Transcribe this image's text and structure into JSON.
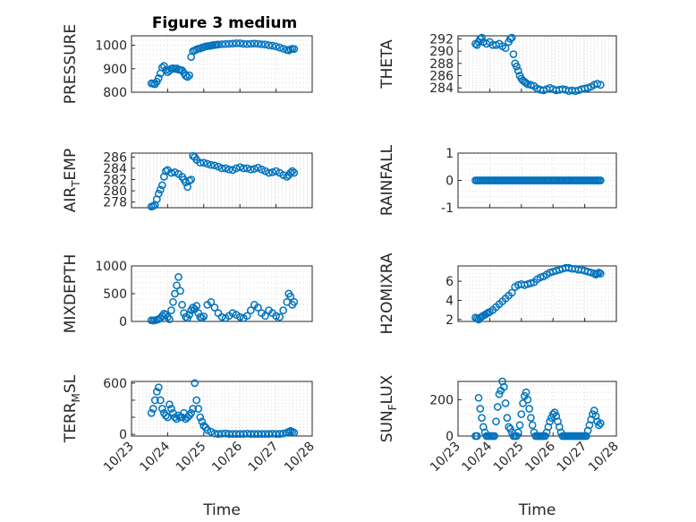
{
  "figure_title": "Figure 3 medium",
  "chart_data": [
    {
      "type": "scatter",
      "ylabel": "PRESSURE",
      "xlabel": "",
      "ylim": [
        800,
        1040
      ],
      "yticks": [
        800,
        900,
        1000
      ],
      "ytick_labels": [
        "800",
        "900",
        "1000"
      ],
      "xlim": [
        0,
        5
      ],
      "x": [
        0.55,
        0.6,
        0.65,
        0.7,
        0.75,
        0.8,
        0.85,
        0.9,
        0.95,
        1.0,
        1.05,
        1.1,
        1.15,
        1.2,
        1.25,
        1.3,
        1.35,
        1.4,
        1.45,
        1.5,
        1.55,
        1.6,
        1.65,
        1.7,
        1.75,
        1.8,
        1.85,
        1.9,
        1.95,
        2.0,
        2.05,
        2.1,
        2.15,
        2.2,
        2.25,
        2.3,
        2.35,
        2.4,
        2.5,
        2.6,
        2.7,
        2.8,
        2.9,
        3.0,
        3.1,
        3.2,
        3.3,
        3.4,
        3.5,
        3.6,
        3.7,
        3.8,
        3.9,
        4.0,
        4.1,
        4.2,
        4.3,
        4.35,
        4.4,
        4.45,
        4.5
      ],
      "y": [
        838,
        836,
        834,
        845,
        860,
        880,
        905,
        912,
        895,
        885,
        892,
        900,
        902,
        899,
        901,
        896,
        895,
        893,
        882,
        870,
        865,
        872,
        950,
        975,
        978,
        982,
        985,
        986,
        990,
        992,
        995,
        996,
        997,
        998,
        1000,
        1001,
        1002,
        1003,
        1004,
        1005,
        1006,
        1007,
        1008,
        1008,
        1006,
        1005,
        1006,
        1007,
        1006,
        1004,
        1003,
        1000,
        998,
        995,
        990,
        985,
        980,
        978,
        982,
        985,
        984
      ]
    },
    {
      "type": "scatter",
      "ylabel": "THETA",
      "xlabel": "",
      "ylim": [
        283.3,
        292.5
      ],
      "yticks": [
        284,
        286,
        288,
        290,
        292
      ],
      "ytick_labels": [
        "284",
        "286",
        "288",
        "290",
        "292"
      ],
      "xlim": [
        0,
        5
      ],
      "x": [
        0.55,
        0.6,
        0.65,
        0.7,
        0.75,
        0.8,
        0.9,
        1.0,
        1.1,
        1.2,
        1.3,
        1.4,
        1.5,
        1.6,
        1.65,
        1.7,
        1.75,
        1.8,
        1.85,
        1.9,
        1.95,
        2.0,
        2.05,
        2.1,
        2.15,
        2.2,
        2.3,
        2.4,
        2.5,
        2.6,
        2.7,
        2.8,
        2.9,
        3.0,
        3.1,
        3.2,
        3.3,
        3.4,
        3.5,
        3.6,
        3.7,
        3.8,
        3.9,
        4.0,
        4.1,
        4.2,
        4.3,
        4.4,
        4.5
      ],
      "y": [
        291.2,
        291.0,
        291.5,
        292.0,
        292.2,
        291.5,
        291.2,
        291.5,
        291.0,
        291.0,
        291.2,
        290.8,
        290.5,
        291.5,
        292.0,
        292.2,
        289.5,
        288.0,
        287.5,
        286.8,
        286.0,
        285.5,
        285.2,
        285.0,
        284.8,
        284.6,
        284.5,
        284.3,
        283.9,
        283.7,
        283.6,
        283.8,
        284.0,
        283.8,
        283.6,
        283.7,
        283.8,
        283.7,
        283.5,
        283.6,
        283.5,
        283.6,
        283.8,
        283.9,
        284.0,
        284.2,
        284.5,
        284.7,
        284.5
      ]
    },
    {
      "type": "scatter",
      "ylabel": "AIR_TEMP",
      "xlabel": "",
      "ylim": [
        277,
        286.7
      ],
      "yticks": [
        278,
        280,
        282,
        284,
        286
      ],
      "ytick_labels": [
        "278",
        "280",
        "282",
        "284",
        "286"
      ],
      "xlim": [
        0,
        5
      ],
      "x": [
        0.55,
        0.6,
        0.65,
        0.7,
        0.75,
        0.8,
        0.85,
        0.9,
        0.95,
        1.0,
        1.1,
        1.2,
        1.3,
        1.4,
        1.45,
        1.5,
        1.55,
        1.6,
        1.65,
        1.7,
        1.75,
        1.8,
        1.9,
        2.0,
        2.1,
        2.2,
        2.3,
        2.4,
        2.5,
        2.6,
        2.7,
        2.8,
        2.9,
        3.0,
        3.1,
        3.2,
        3.3,
        3.4,
        3.5,
        3.6,
        3.7,
        3.8,
        3.9,
        4.0,
        4.1,
        4.2,
        4.3,
        4.35,
        4.4,
        4.45,
        4.5
      ],
      "y": [
        277.2,
        277.3,
        277.5,
        278.5,
        279.5,
        280.2,
        281.0,
        282.5,
        283.5,
        283.7,
        283.2,
        283.3,
        283.0,
        282.5,
        282.0,
        281.5,
        280.7,
        281.8,
        282.0,
        286.2,
        286.0,
        285.5,
        285.0,
        285.0,
        284.8,
        284.6,
        284.5,
        284.3,
        284.0,
        284.0,
        283.8,
        283.7,
        284.0,
        284.2,
        284.0,
        284.0,
        283.8,
        283.9,
        284.1,
        283.8,
        283.5,
        283.2,
        283.3,
        283.5,
        283.2,
        282.8,
        282.5,
        282.8,
        283.2,
        283.5,
        283.2
      ]
    },
    {
      "type": "scatter",
      "ylabel": "RAINFALL",
      "xlabel": "",
      "ylim": [
        -1,
        1
      ],
      "yticks": [
        -1,
        0,
        1
      ],
      "ytick_labels": [
        "-1",
        "0",
        "1"
      ],
      "xlim": [
        0,
        5
      ],
      "x": [
        0.55,
        0.6,
        0.65,
        0.7,
        0.75,
        0.8,
        0.85,
        0.9,
        0.95,
        1.0,
        1.05,
        1.1,
        1.15,
        1.2,
        1.25,
        1.3,
        1.35,
        1.4,
        1.45,
        1.5,
        1.55,
        1.6,
        1.65,
        1.7,
        1.75,
        1.8,
        1.85,
        1.9,
        1.95,
        2.0,
        2.05,
        2.1,
        2.15,
        2.2,
        2.25,
        2.3,
        2.35,
        2.4,
        2.45,
        2.5,
        2.55,
        2.6,
        2.65,
        2.7,
        2.75,
        2.8,
        2.85,
        2.9,
        2.95,
        3.0,
        3.05,
        3.1,
        3.15,
        3.2,
        3.25,
        3.3,
        3.35,
        3.4,
        3.45,
        3.5,
        3.55,
        3.6,
        3.65,
        3.7,
        3.75,
        3.8,
        3.85,
        3.9,
        3.95,
        4.0,
        4.05,
        4.1,
        4.15,
        4.2,
        4.25,
        4.3,
        4.35,
        4.4,
        4.45,
        4.5
      ],
      "y": [
        0,
        0,
        0,
        0,
        0,
        0,
        0,
        0,
        0,
        0,
        0,
        0,
        0,
        0,
        0,
        0,
        0,
        0,
        0,
        0,
        0,
        0,
        0,
        0,
        0,
        0,
        0,
        0,
        0,
        0,
        0,
        0,
        0,
        0,
        0,
        0,
        0,
        0,
        0,
        0,
        0,
        0,
        0,
        0,
        0,
        0,
        0,
        0,
        0,
        0,
        0,
        0,
        0,
        0,
        0,
        0,
        0,
        0,
        0,
        0,
        0,
        0,
        0,
        0,
        0,
        0,
        0,
        0,
        0,
        0,
        0,
        0,
        0,
        0,
        0,
        0,
        0,
        0,
        0,
        0
      ]
    },
    {
      "type": "scatter",
      "ylabel": "MIXDEPTH",
      "xlabel": "",
      "ylim": [
        0,
        1000
      ],
      "yticks": [
        0,
        500,
        1000
      ],
      "ytick_labels": [
        "0",
        "500",
        "1000"
      ],
      "xlim": [
        0,
        5
      ],
      "x": [
        0.55,
        0.6,
        0.65,
        0.7,
        0.75,
        0.8,
        0.85,
        0.9,
        0.95,
        1.0,
        1.05,
        1.1,
        1.15,
        1.2,
        1.25,
        1.3,
        1.35,
        1.4,
        1.45,
        1.5,
        1.55,
        1.6,
        1.65,
        1.7,
        1.75,
        1.8,
        1.85,
        1.9,
        1.95,
        2.0,
        2.1,
        2.2,
        2.3,
        2.4,
        2.5,
        2.6,
        2.7,
        2.8,
        2.9,
        3.0,
        3.1,
        3.2,
        3.3,
        3.4,
        3.5,
        3.6,
        3.7,
        3.8,
        3.9,
        4.0,
        4.1,
        4.2,
        4.3,
        4.35,
        4.4,
        4.45,
        4.5
      ],
      "y": [
        20,
        15,
        20,
        30,
        40,
        60,
        100,
        140,
        120,
        80,
        40,
        200,
        350,
        500,
        650,
        800,
        550,
        300,
        150,
        80,
        60,
        120,
        200,
        250,
        220,
        280,
        150,
        80,
        60,
        90,
        300,
        350,
        250,
        150,
        80,
        60,
        100,
        150,
        120,
        80,
        60,
        100,
        200,
        300,
        250,
        150,
        100,
        200,
        150,
        100,
        80,
        200,
        350,
        500,
        450,
        300,
        350
      ]
    },
    {
      "type": "scatter",
      "ylabel": "H2OMIXRA",
      "xlabel": "",
      "ylim": [
        1.8,
        7.6
      ],
      "yticks": [
        2,
        4,
        6
      ],
      "ytick_labels": [
        "2",
        "4",
        "6"
      ],
      "xlim": [
        0,
        5
      ],
      "x": [
        0.55,
        0.6,
        0.65,
        0.7,
        0.75,
        0.8,
        0.85,
        0.9,
        0.95,
        1.0,
        1.1,
        1.2,
        1.3,
        1.4,
        1.5,
        1.6,
        1.7,
        1.8,
        1.9,
        2.0,
        2.1,
        2.2,
        2.3,
        2.4,
        2.5,
        2.6,
        2.7,
        2.8,
        2.9,
        3.0,
        3.1,
        3.2,
        3.3,
        3.4,
        3.5,
        3.6,
        3.7,
        3.8,
        3.9,
        4.0,
        4.1,
        4.2,
        4.3,
        4.35,
        4.4,
        4.45,
        4.5
      ],
      "y": [
        2.2,
        2.1,
        2.0,
        2.2,
        2.3,
        2.4,
        2.5,
        2.6,
        2.7,
        2.8,
        3.0,
        3.3,
        3.6,
        3.9,
        4.2,
        4.5,
        4.8,
        5.4,
        5.6,
        5.7,
        5.6,
        5.7,
        5.8,
        5.9,
        6.2,
        6.4,
        6.5,
        6.7,
        6.9,
        7.0,
        7.1,
        7.2,
        7.3,
        7.4,
        7.4,
        7.3,
        7.3,
        7.2,
        7.2,
        7.1,
        7.0,
        6.9,
        6.8,
        6.7,
        6.8,
        6.9,
        6.8
      ]
    },
    {
      "type": "scatter",
      "ylabel": "TERR_MSL",
      "xlabel": "",
      "ylim": [
        -20,
        620
      ],
      "yticks": [
        0,
        200,
        400,
        600
      ],
      "ytick_labels": [
        "0",
        "",
        "",
        "600"
      ],
      "xlim": [
        0,
        5
      ],
      "x": [
        0.55,
        0.6,
        0.65,
        0.7,
        0.75,
        0.8,
        0.85,
        0.9,
        0.95,
        1.0,
        1.05,
        1.1,
        1.15,
        1.2,
        1.25,
        1.3,
        1.35,
        1.4,
        1.45,
        1.5,
        1.55,
        1.6,
        1.65,
        1.7,
        1.75,
        1.8,
        1.85,
        1.9,
        1.95,
        2.0,
        2.05,
        2.1,
        2.2,
        2.3,
        2.4,
        2.5,
        2.6,
        2.7,
        2.8,
        2.9,
        3.0,
        3.1,
        3.2,
        3.3,
        3.4,
        3.5,
        3.6,
        3.7,
        3.8,
        3.9,
        4.0,
        4.1,
        4.2,
        4.3,
        4.35,
        4.4,
        4.45,
        4.5
      ],
      "y": [
        250,
        300,
        400,
        500,
        550,
        400,
        300,
        250,
        220,
        200,
        350,
        300,
        250,
        200,
        180,
        220,
        200,
        200,
        250,
        180,
        200,
        220,
        250,
        300,
        600,
        400,
        300,
        200,
        150,
        100,
        80,
        50,
        30,
        10,
        5,
        8,
        10,
        5,
        5,
        5,
        5,
        5,
        8,
        5,
        5,
        5,
        5,
        5,
        5,
        8,
        5,
        5,
        10,
        20,
        30,
        40,
        30,
        20
      ]
    },
    {
      "type": "scatter",
      "ylabel": "SUN_FLUX",
      "xlabel": "",
      "ylim": [
        0,
        300
      ],
      "yticks": [
        0,
        200
      ],
      "ytick_labels": [
        "0",
        "200"
      ],
      "xlim": [
        0,
        5
      ],
      "x": [
        0.55,
        0.6,
        0.65,
        0.7,
        0.75,
        0.8,
        0.85,
        0.9,
        0.95,
        1.0,
        1.05,
        1.1,
        1.15,
        1.2,
        1.25,
        1.3,
        1.35,
        1.4,
        1.45,
        1.5,
        1.55,
        1.6,
        1.65,
        1.7,
        1.75,
        1.8,
        1.85,
        1.9,
        1.95,
        2.0,
        2.05,
        2.1,
        2.15,
        2.2,
        2.25,
        2.3,
        2.35,
        2.4,
        2.45,
        2.5,
        2.55,
        2.6,
        2.65,
        2.7,
        2.75,
        2.8,
        2.85,
        2.9,
        2.95,
        3.0,
        3.05,
        3.1,
        3.15,
        3.2,
        3.25,
        3.3,
        3.35,
        3.4,
        3.45,
        3.5,
        3.55,
        3.6,
        3.65,
        3.7,
        3.75,
        3.8,
        3.85,
        3.9,
        3.95,
        4.0,
        4.05,
        4.1,
        4.15,
        4.2,
        4.25,
        4.3,
        4.35,
        4.4,
        4.45,
        4.5
      ],
      "y": [
        0,
        0,
        210,
        150,
        100,
        50,
        20,
        0,
        0,
        0,
        0,
        0,
        0,
        80,
        160,
        230,
        250,
        300,
        270,
        180,
        100,
        50,
        40,
        20,
        0,
        0,
        0,
        20,
        60,
        120,
        180,
        220,
        240,
        200,
        150,
        100,
        60,
        20,
        0,
        0,
        0,
        0,
        0,
        0,
        0,
        20,
        50,
        80,
        100,
        120,
        130,
        110,
        80,
        50,
        20,
        0,
        0,
        0,
        0,
        0,
        0,
        0,
        0,
        0,
        0,
        0,
        0,
        0,
        0,
        0,
        0,
        30,
        60,
        90,
        120,
        140,
        110,
        80,
        60,
        70
      ]
    }
  ],
  "x_axis": {
    "tick_labels": [
      "10/23",
      "10/24",
      "10/25",
      "10/26",
      "10/27",
      "10/28"
    ],
    "label": "Time"
  },
  "colors": {
    "marker": "#0072bd",
    "axis": "#262626",
    "grid": "#d9d9d9"
  }
}
